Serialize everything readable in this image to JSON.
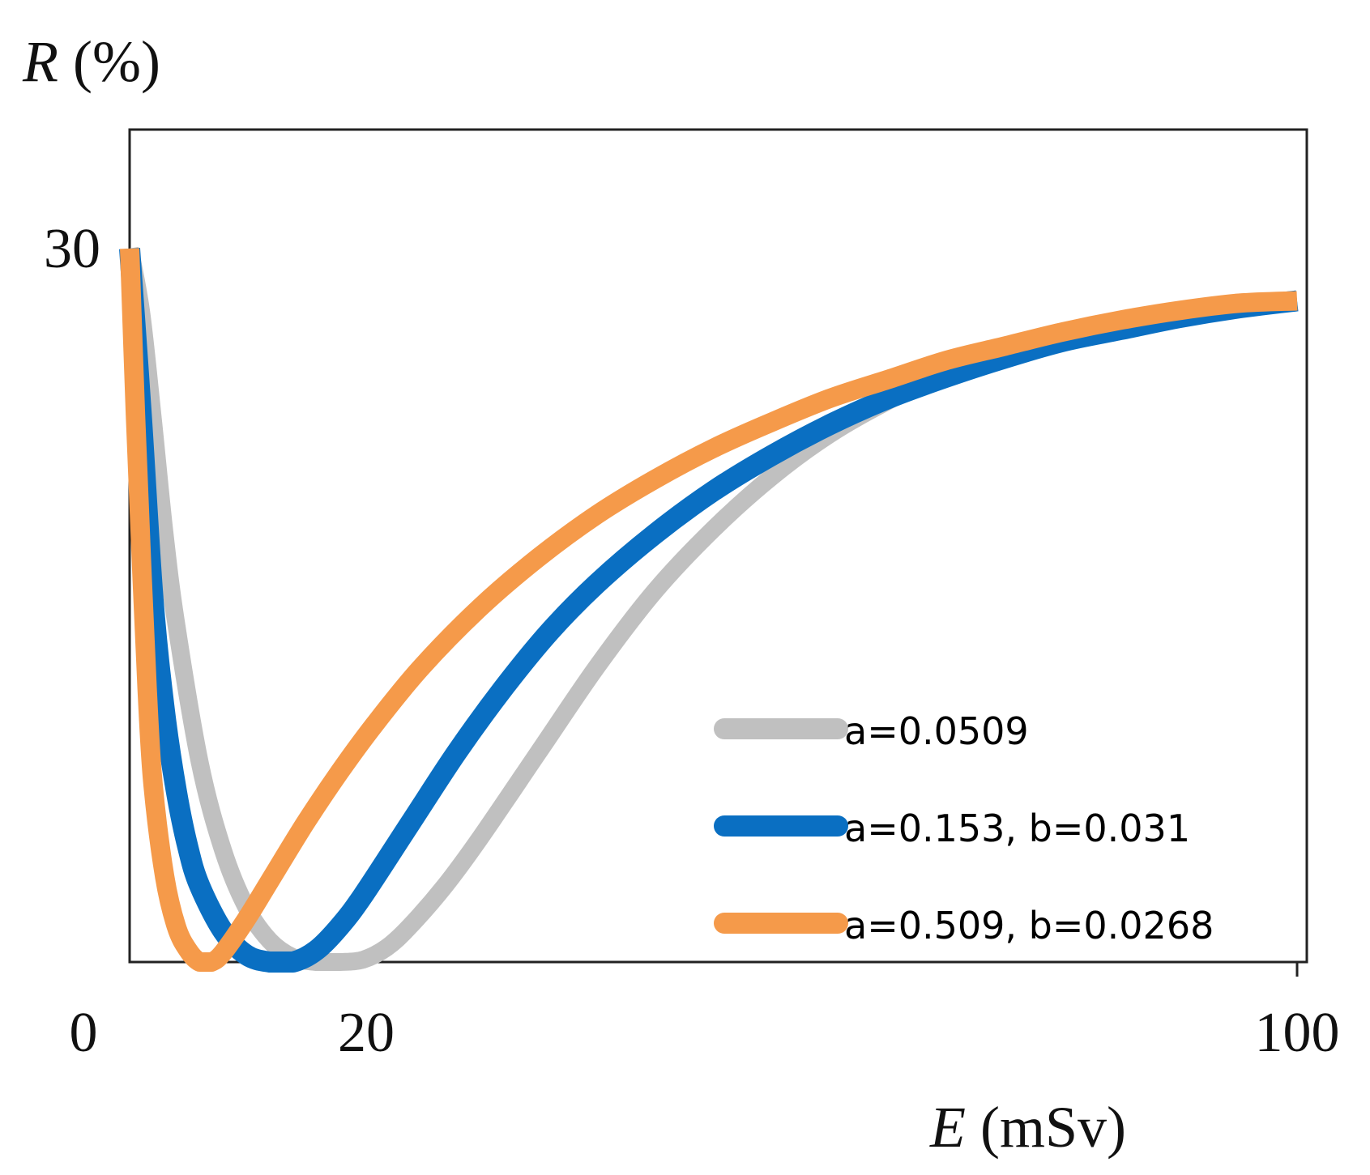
{
  "chart_data": {
    "type": "line",
    "title": "",
    "xlabel": {
      "var": "E",
      "unit": " (mSv)"
    },
    "ylabel": {
      "var": "R",
      "unit": " (%)"
    },
    "xlim": [
      0,
      100
    ],
    "ylim": [
      0,
      35
    ],
    "xticks": [
      "0",
      "20",
      "100"
    ],
    "yticks": [
      "30"
    ],
    "legend_position": "bottom-right",
    "series": [
      {
        "name": "a=0.0509",
        "color": "#c0c0c0",
        "x": [
          0,
          1,
          2,
          3,
          4,
          6,
          8,
          10,
          12,
          14,
          16,
          18,
          20,
          22,
          24,
          27,
          30,
          35,
          40,
          45,
          50,
          55,
          60,
          65,
          70,
          75,
          80,
          85,
          90,
          95,
          100
        ],
        "y": [
          30,
          27.3,
          22.8,
          18,
          14.2,
          8.4,
          4.7,
          2.3,
          0.9,
          0.2,
          0,
          0,
          0.1,
          0.6,
          1.5,
          3.2,
          5.2,
          8.8,
          12.4,
          15.6,
          18.2,
          20.4,
          22.2,
          23.6,
          24.8,
          25.7,
          26.4,
          26.9,
          27.3,
          27.6,
          27.8
        ]
      },
      {
        "name": "a=0.153, b=0.031",
        "color": "#0a6fc2",
        "x": [
          0,
          1,
          2,
          3,
          4,
          5,
          6,
          8,
          10,
          12,
          14,
          16,
          18,
          20,
          24,
          28,
          32,
          36,
          40,
          45,
          50,
          55,
          60,
          65,
          70,
          75,
          80,
          85,
          90,
          95,
          100
        ],
        "y": [
          30,
          23,
          15.3,
          10.5,
          7.2,
          4.8,
          3.2,
          1.3,
          0.3,
          0,
          0,
          0.5,
          1.5,
          2.8,
          5.8,
          8.8,
          11.5,
          13.9,
          15.9,
          18,
          19.8,
          21.3,
          22.6,
          23.7,
          24.6,
          25.4,
          26.1,
          26.6,
          27.1,
          27.5,
          27.8
        ]
      },
      {
        "name": "a=0.509, b=0.0268",
        "color": "#f59a4a",
        "x": [
          0,
          0.5,
          1,
          1.5,
          2,
          3,
          4,
          5,
          6,
          7,
          8,
          10,
          12,
          15,
          18,
          21,
          25,
          30,
          35,
          40,
          45,
          50,
          55,
          60,
          65,
          70,
          75,
          80,
          85,
          90,
          95,
          100
        ],
        "y": [
          30,
          23,
          17,
          11.5,
          7.5,
          3.6,
          1.5,
          0.5,
          0,
          0,
          0.4,
          1.8,
          3.4,
          5.8,
          8,
          10,
          12.4,
          14.9,
          17,
          18.8,
          20.3,
          21.6,
          22.7,
          23.7,
          24.5,
          25.3,
          25.9,
          26.5,
          27,
          27.4,
          27.7,
          27.8
        ]
      }
    ]
  }
}
